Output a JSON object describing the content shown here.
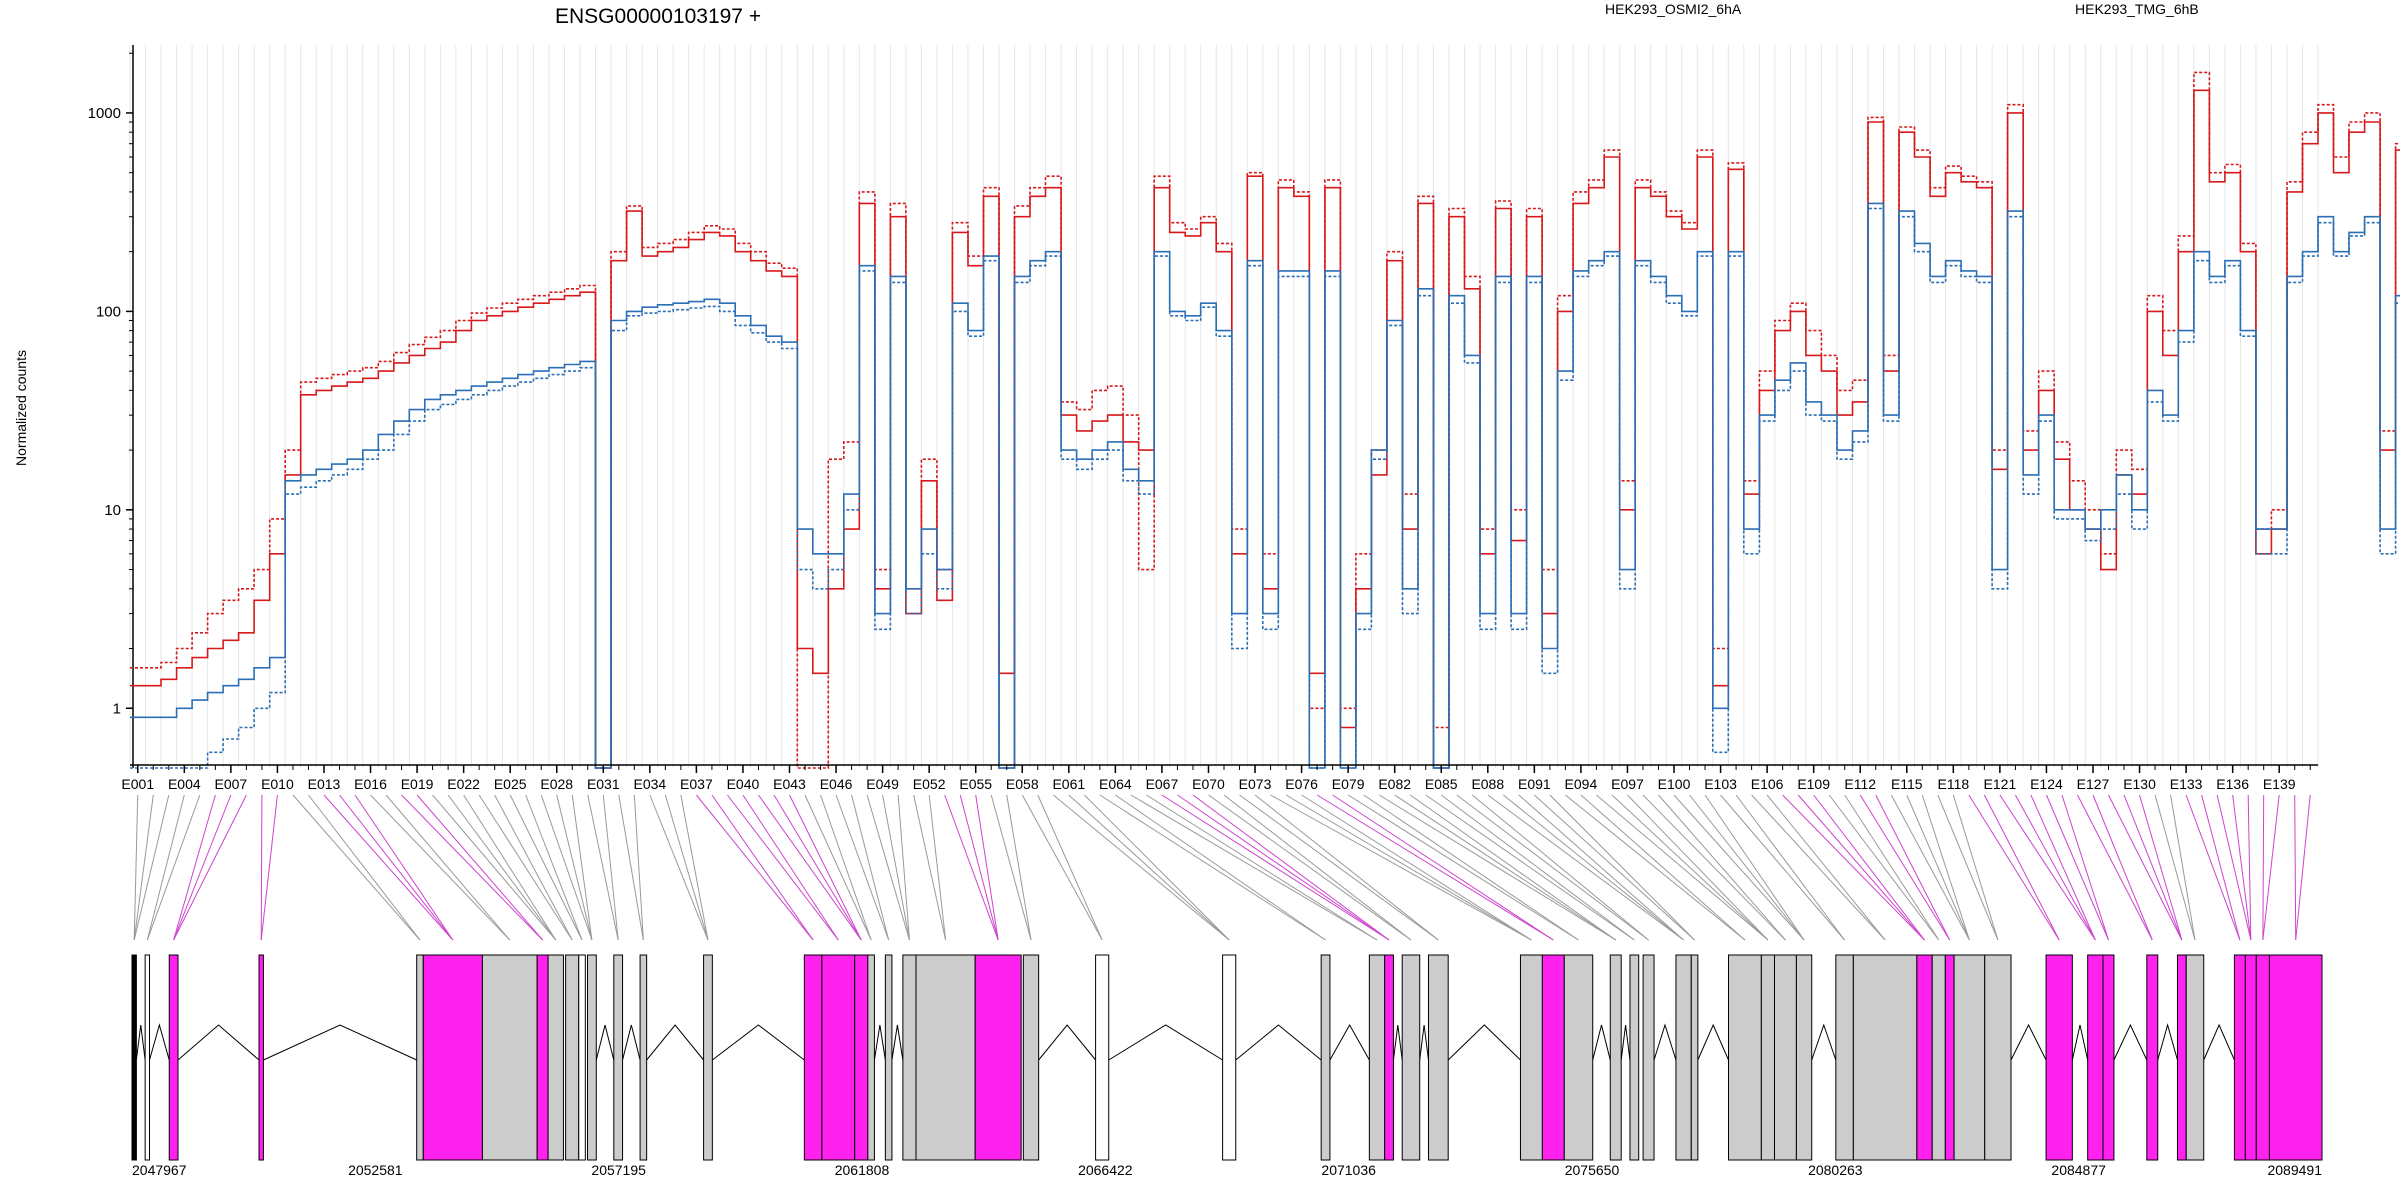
{
  "chart_data": {
    "type": "line",
    "title": "ENSG00000103197 +",
    "ylabel": "Normalized counts",
    "yscale": "log",
    "ylim": [
      0.5,
      2200
    ],
    "y_ticks": [
      1,
      10,
      100,
      1000
    ],
    "y_tick_labels": [
      "1",
      "10",
      "100",
      "1000"
    ],
    "legend": {
      "placement": "top",
      "entries": [
        {
          "name": "HEK293_OSMI2_6hA",
          "color": "#d7191c"
        },
        {
          "name": "HEK293_TMG_6hB",
          "color": "#2b6fb5"
        }
      ]
    },
    "exon_tick_labels": [
      "E001",
      "E004",
      "E007",
      "E010",
      "E013",
      "E016",
      "E019",
      "E022",
      "E025",
      "E028",
      "E031",
      "E034",
      "E037",
      "E040",
      "E043",
      "E046",
      "E049",
      "E052",
      "E055",
      "E058",
      "E061",
      "E064",
      "E067",
      "E070",
      "E073",
      "E076",
      "E079",
      "E082",
      "E085",
      "E088",
      "E091",
      "E094",
      "E097",
      "E100",
      "E103",
      "E106",
      "E109",
      "E112",
      "E115",
      "E118",
      "E121",
      "E124",
      "E127",
      "E130",
      "E133",
      "E136",
      "E139"
    ],
    "n_exons": 141,
    "series": [
      {
        "name": "HEK293_OSMI2_6hA",
        "color": "#d7191c",
        "values": [
          1.3,
          1.3,
          1.4,
          1.6,
          1.8,
          2.0,
          2.2,
          2.4,
          3.5,
          6.0,
          15,
          38,
          40,
          42,
          44,
          46,
          50,
          55,
          60,
          65,
          70,
          80,
          90,
          95,
          100,
          105,
          110,
          115,
          120,
          125,
          0.5,
          180,
          320,
          190,
          200,
          210,
          230,
          250,
          240,
          200,
          180,
          160,
          150,
          2.0,
          1.5,
          4.0,
          8.0,
          350,
          4.0,
          300,
          3.0,
          14,
          3.5,
          250,
          170,
          380,
          1.5,
          300,
          380,
          420,
          30,
          25,
          28,
          30,
          22,
          20,
          420,
          250,
          240,
          280,
          200,
          6,
          480,
          4,
          420,
          380,
          1.5,
          420,
          0.8,
          4,
          15,
          180,
          8,
          350,
          0.5,
          300,
          130,
          6,
          330,
          7,
          300,
          3,
          100,
          350,
          420,
          600,
          10,
          420,
          380,
          300,
          260,
          600,
          1.3,
          520,
          12,
          40,
          80,
          100,
          60,
          50,
          30,
          35,
          900,
          50,
          800,
          600,
          380,
          500,
          450,
          420,
          16,
          1000,
          20,
          40,
          18,
          10,
          8,
          5,
          15,
          12,
          100,
          60,
          200,
          1300,
          450,
          500,
          200,
          6,
          8,
          400,
          700,
          1000,
          500,
          800,
          900,
          20,
          650,
          5,
          700,
          10,
          480,
          650,
          550
        ],
        "dash": false
      },
      {
        "name": "HEK293_OSMI2_6hA",
        "color": "#d7191c",
        "values": [
          1.6,
          1.6,
          1.7,
          2.0,
          2.4,
          3.0,
          3.5,
          4.0,
          5.0,
          9.0,
          20,
          44,
          46,
          48,
          50,
          52,
          56,
          62,
          68,
          74,
          80,
          90,
          98,
          104,
          110,
          115,
          120,
          125,
          130,
          135,
          0.5,
          200,
          340,
          210,
          220,
          230,
          250,
          270,
          260,
          220,
          200,
          175,
          165,
          0.5,
          0.5,
          18,
          22,
          400,
          5,
          350,
          4.0,
          18,
          5,
          280,
          190,
          420,
          0.5,
          340,
          420,
          480,
          35,
          32,
          40,
          42,
          30,
          5,
          480,
          280,
          260,
          300,
          220,
          8,
          500,
          6,
          460,
          400,
          1.0,
          460,
          1.0,
          6,
          20,
          200,
          12,
          380,
          0.8,
          330,
          150,
          8,
          360,
          10,
          330,
          5,
          120,
          400,
          460,
          650,
          14,
          460,
          400,
          320,
          280,
          650,
          2.0,
          560,
          14,
          50,
          90,
          110,
          80,
          60,
          40,
          45,
          950,
          60,
          850,
          650,
          420,
          540,
          480,
          450,
          20,
          1100,
          25,
          50,
          22,
          14,
          10,
          6,
          20,
          16,
          120,
          80,
          240,
          1600,
          500,
          550,
          220,
          8,
          10,
          450,
          800,
          1100,
          600,
          900,
          1000,
          25,
          700,
          6,
          750,
          12,
          520,
          700,
          600
        ],
        "dash": true
      },
      {
        "name": "HEK293_TMG_6hB",
        "color": "#2b6fb5",
        "values": [
          0.9,
          0.9,
          0.9,
          1.0,
          1.1,
          1.2,
          1.3,
          1.4,
          1.6,
          1.8,
          14,
          15,
          16,
          17,
          18,
          20,
          24,
          28,
          32,
          36,
          38,
          40,
          42,
          44,
          46,
          48,
          50,
          52,
          54,
          56,
          0.5,
          90,
          100,
          105,
          108,
          110,
          112,
          115,
          110,
          95,
          85,
          75,
          70,
          8,
          6,
          6,
          12,
          170,
          3,
          150,
          4.0,
          8,
          5,
          110,
          80,
          190,
          0.5,
          150,
          180,
          200,
          20,
          18,
          20,
          22,
          16,
          14,
          200,
          100,
          95,
          110,
          80,
          3,
          180,
          3,
          160,
          160,
          0.5,
          160,
          0.5,
          3,
          20,
          90,
          4,
          130,
          0.5,
          120,
          60,
          3,
          150,
          3,
          150,
          2,
          50,
          160,
          180,
          200,
          5,
          180,
          150,
          120,
          100,
          200,
          1.0,
          200,
          8,
          30,
          45,
          55,
          35,
          30,
          20,
          25,
          350,
          30,
          320,
          220,
          150,
          180,
          160,
          150,
          5,
          320,
          15,
          30,
          10,
          10,
          8,
          10,
          15,
          10,
          40,
          30,
          80,
          200,
          150,
          180,
          80,
          8,
          8,
          150,
          200,
          300,
          200,
          250,
          300,
          8,
          120,
          4,
          150,
          5,
          150,
          160,
          160
        ],
        "dash": false
      },
      {
        "name": "HEK293_TMG_6hB",
        "color": "#2b6fb5",
        "values": [
          0.5,
          0.5,
          0.5,
          0.5,
          0.5,
          0.6,
          0.7,
          0.8,
          1.0,
          1.2,
          12,
          13,
          14,
          15,
          16,
          18,
          20,
          24,
          28,
          32,
          34,
          36,
          38,
          40,
          42,
          44,
          46,
          48,
          50,
          52,
          0.5,
          80,
          95,
          98,
          100,
          102,
          104,
          106,
          100,
          85,
          78,
          70,
          65,
          5,
          4,
          5,
          10,
          160,
          2.5,
          140,
          3,
          6,
          4,
          100,
          75,
          180,
          0.5,
          140,
          170,
          190,
          18,
          16,
          18,
          20,
          14,
          12,
          190,
          95,
          90,
          105,
          75,
          2,
          170,
          2.5,
          150,
          150,
          0.5,
          150,
          0.5,
          2.5,
          18,
          85,
          3,
          120,
          0.5,
          110,
          55,
          2.5,
          140,
          2.5,
          140,
          1.5,
          45,
          150,
          170,
          190,
          4,
          170,
          140,
          110,
          95,
          190,
          0.6,
          190,
          6,
          28,
          40,
          50,
          30,
          28,
          18,
          22,
          330,
          28,
          300,
          200,
          140,
          170,
          150,
          140,
          4,
          300,
          12,
          28,
          9,
          9,
          7,
          8,
          12,
          8,
          35,
          28,
          70,
          180,
          140,
          170,
          75,
          6,
          6,
          140,
          190,
          280,
          190,
          240,
          280,
          6,
          110,
          3,
          140,
          4,
          140,
          150,
          150
        ],
        "dash": true
      }
    ],
    "genomic_axis": {
      "range": [
        2047967,
        2089491
      ],
      "tick_labels": [
        "2047967",
        "2052581",
        "2057195",
        "2061808",
        "2066422",
        "2071036",
        "2075650",
        "2080263",
        "2084877",
        "2089491"
      ]
    }
  }
}
